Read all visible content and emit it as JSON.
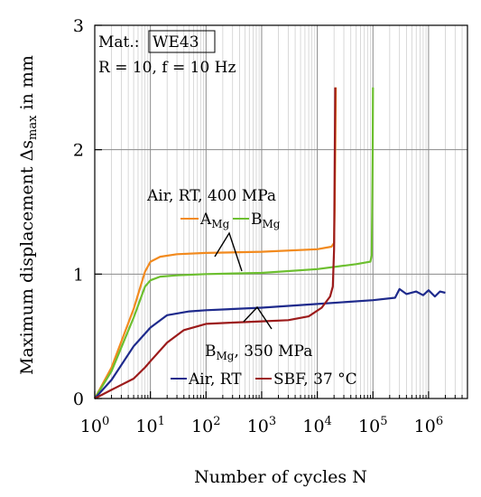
{
  "chart_data": {
    "type": "line",
    "xscale": "log",
    "xlabel": "Number of cycles N",
    "ylabel": {
      "base": "Maximum displacement Δs",
      "sub": "max",
      "tail": " in mm"
    },
    "xlim": [
      1,
      5000000
    ],
    "ylim": [
      0,
      3
    ],
    "xticks": [
      {
        "value": 1,
        "base": "10",
        "exp": "0"
      },
      {
        "value": 10,
        "base": "10",
        "exp": "1"
      },
      {
        "value": 100,
        "base": "10",
        "exp": "2"
      },
      {
        "value": 1000,
        "base": "10",
        "exp": "3"
      },
      {
        "value": 10000,
        "base": "10",
        "exp": "4"
      },
      {
        "value": 100000,
        "base": "10",
        "exp": "5"
      },
      {
        "value": 1000000,
        "base": "10",
        "exp": "6"
      }
    ],
    "yticks": [
      {
        "value": 0,
        "label": "0"
      },
      {
        "value": 1,
        "label": "1"
      },
      {
        "value": 2,
        "label": "2"
      },
      {
        "value": 3,
        "label": "3"
      }
    ],
    "grid": true,
    "info": {
      "material_label": "Mat.:",
      "material": "WE43",
      "conditions": "R = 10, f = 10 Hz"
    },
    "annotations": {
      "group_high": "Air, RT, 400 MPa",
      "series_a_name": {
        "base": "A",
        "sub": "Mg"
      },
      "series_b_name": {
        "base": "B",
        "sub": "Mg"
      },
      "group_low": {
        "base": "B",
        "sub": "Mg",
        "tail": ", 350 MPa"
      },
      "air_rt": "Air, RT",
      "sbf": "SBF, 37 °C"
    },
    "series": [
      {
        "key": "A_air_400",
        "color": "#f28a1e",
        "points": [
          [
            1,
            0
          ],
          [
            2,
            0.25
          ],
          [
            5,
            0.72
          ],
          [
            8,
            1.02
          ],
          [
            10,
            1.1
          ],
          [
            15,
            1.14
          ],
          [
            30,
            1.16
          ],
          [
            100,
            1.17
          ],
          [
            1000,
            1.18
          ],
          [
            10000,
            1.2
          ],
          [
            18000,
            1.22
          ],
          [
            20000,
            1.25
          ],
          [
            20500,
            1.5
          ],
          [
            21000,
            2.0
          ],
          [
            21500,
            2.5
          ]
        ]
      },
      {
        "key": "B_air_400",
        "color": "#6cbf2f",
        "points": [
          [
            1,
            0
          ],
          [
            2,
            0.22
          ],
          [
            5,
            0.65
          ],
          [
            8,
            0.9
          ],
          [
            10,
            0.95
          ],
          [
            15,
            0.98
          ],
          [
            30,
            0.99
          ],
          [
            100,
            1.0
          ],
          [
            1000,
            1.01
          ],
          [
            10000,
            1.04
          ],
          [
            50000,
            1.08
          ],
          [
            90000,
            1.1
          ],
          [
            95000,
            1.15
          ],
          [
            97000,
            1.5
          ],
          [
            99000,
            2.0
          ],
          [
            100000,
            2.5
          ]
        ]
      },
      {
        "key": "B_air_350",
        "color": "#1e2a8c",
        "points": [
          [
            1,
            0
          ],
          [
            2,
            0.15
          ],
          [
            5,
            0.42
          ],
          [
            10,
            0.57
          ],
          [
            20,
            0.67
          ],
          [
            50,
            0.7
          ],
          [
            100,
            0.71
          ],
          [
            1000,
            0.73
          ],
          [
            10000,
            0.76
          ],
          [
            100000,
            0.79
          ],
          [
            250000,
            0.81
          ],
          [
            300000,
            0.88
          ],
          [
            400000,
            0.84
          ],
          [
            600000,
            0.86
          ],
          [
            800000,
            0.83
          ],
          [
            1000000,
            0.87
          ],
          [
            1300000,
            0.82
          ],
          [
            1600000,
            0.86
          ],
          [
            2000000,
            0.85
          ]
        ]
      },
      {
        "key": "B_sbf_350",
        "color": "#9c1b1b",
        "points": [
          [
            1,
            0
          ],
          [
            2,
            0.07
          ],
          [
            5,
            0.16
          ],
          [
            8,
            0.25
          ],
          [
            10,
            0.3
          ],
          [
            20,
            0.45
          ],
          [
            40,
            0.55
          ],
          [
            100,
            0.6
          ],
          [
            300,
            0.61
          ],
          [
            1000,
            0.62
          ],
          [
            3000,
            0.63
          ],
          [
            7000,
            0.66
          ],
          [
            12000,
            0.73
          ],
          [
            17000,
            0.82
          ],
          [
            19000,
            0.9
          ],
          [
            20000,
            1.2
          ],
          [
            20500,
            1.8
          ],
          [
            21000,
            2.5
          ]
        ]
      }
    ]
  }
}
